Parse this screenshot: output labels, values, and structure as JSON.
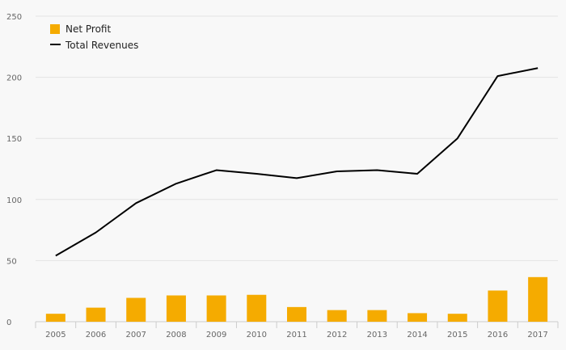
{
  "chart_data": {
    "type": "bar",
    "categories": [
      "2005",
      "2006",
      "2007",
      "2008",
      "2009",
      "2010",
      "2011",
      "2012",
      "2013",
      "2014",
      "2015",
      "2016",
      "2017"
    ],
    "series": [
      {
        "name": "Net Profit",
        "type": "bar",
        "color": "#f5ab00",
        "values": [
          6.5,
          11.5,
          19.5,
          21.5,
          21.5,
          22,
          12,
          9.5,
          9.5,
          7,
          6.5,
          25.5,
          36.5
        ]
      },
      {
        "name": "Total Revenues",
        "type": "line",
        "color": "#000000",
        "values": [
          54,
          73,
          97,
          113,
          124,
          121,
          117.5,
          123,
          124,
          121,
          150,
          201,
          207.5
        ]
      }
    ],
    "y_ticks": [
      "0",
      "50",
      "100",
      "150",
      "200",
      "250"
    ],
    "ylim": [
      0,
      250
    ],
    "grid": true,
    "legend_position": "top-left",
    "title": "",
    "xlabel": "",
    "ylabel": ""
  }
}
